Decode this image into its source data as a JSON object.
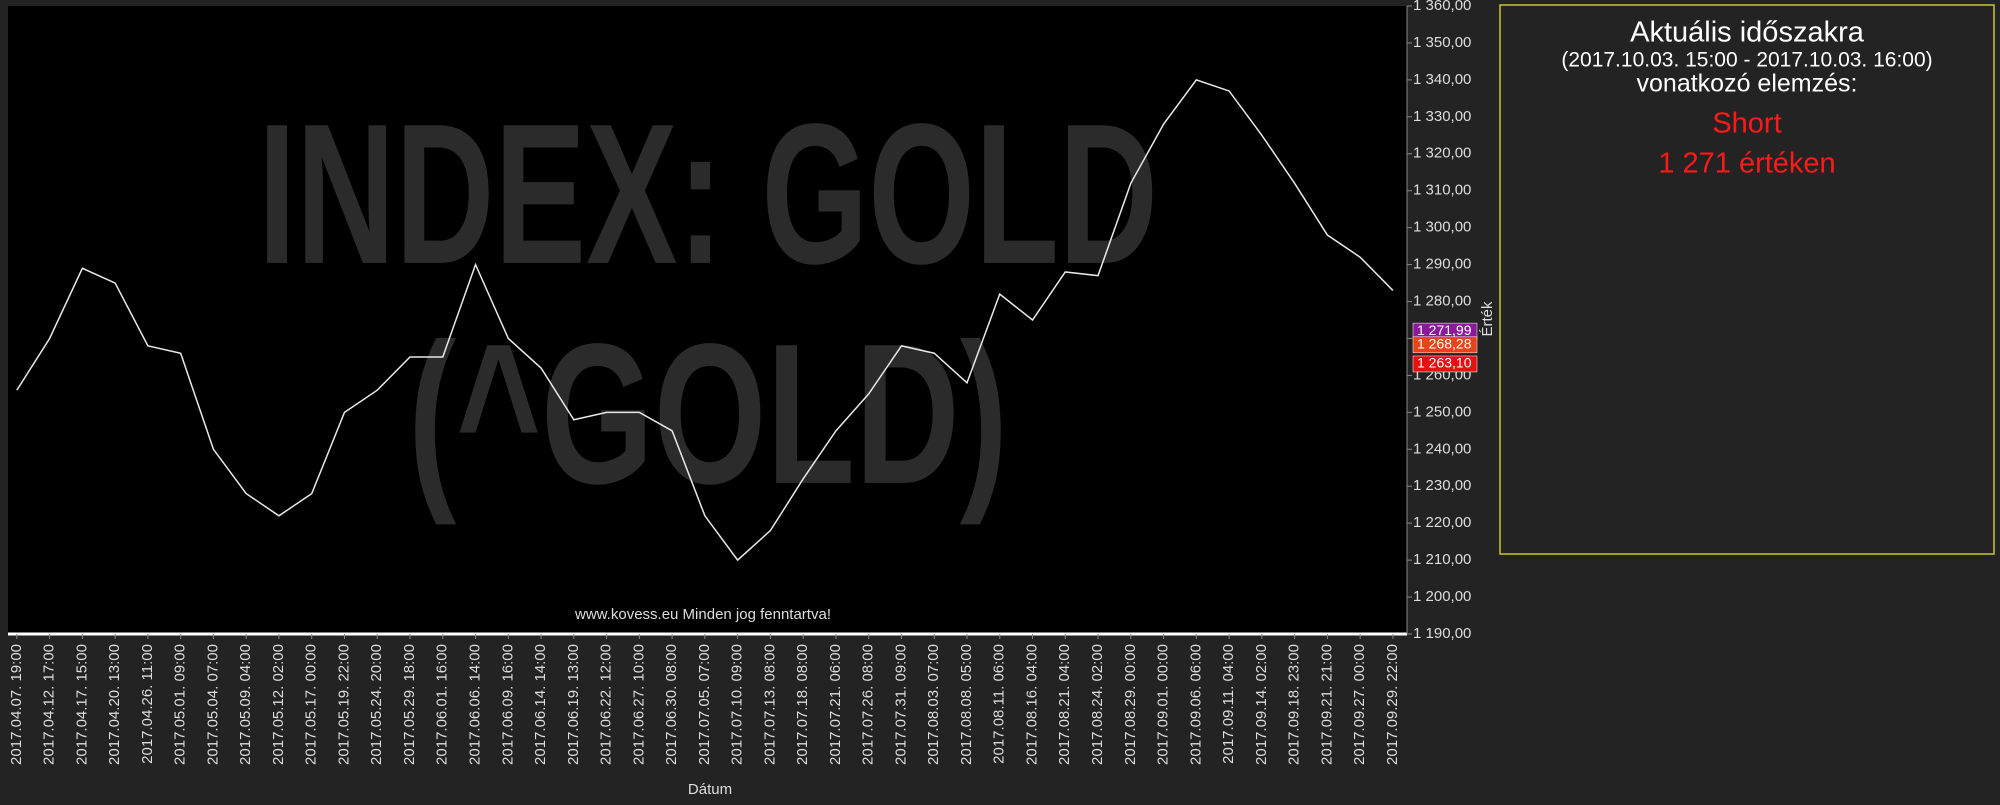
{
  "chart_data": {
    "type": "line",
    "watermark": [
      "INDEX: GOLD",
      "(^GOLD)"
    ],
    "footer": "www.kovess.eu Minden jog fenntartva!",
    "x_label": "Dátum",
    "y_label": "Érték",
    "categories": [
      "2017.04.07. 19:00",
      "2017.04.12. 17:00",
      "2017.04.17. 15:00",
      "2017.04.20. 13:00",
      "2017.04.26. 11:00",
      "2017.05.01. 09:00",
      "2017.05.04. 07:00",
      "2017.05.09. 04:00",
      "2017.05.12. 02:00",
      "2017.05.17. 00:00",
      "2017.05.19. 22:00",
      "2017.05.24. 20:00",
      "2017.05.29. 18:00",
      "2017.06.01. 16:00",
      "2017.06.06. 14:00",
      "2017.06.09. 16:00",
      "2017.06.14. 14:00",
      "2017.06.19. 13:00",
      "2017.06.22. 12:00",
      "2017.06.27. 10:00",
      "2017.06.30. 08:00",
      "2017.07.05. 07:00",
      "2017.07.10. 09:00",
      "2017.07.13. 08:00",
      "2017.07.18. 08:00",
      "2017.07.21. 06:00",
      "2017.07.26. 08:00",
      "2017.07.31. 09:00",
      "2017.08.03. 07:00",
      "2017.08.08. 05:00",
      "2017.08.11. 06:00",
      "2017.08.16. 04:00",
      "2017.08.21. 04:00",
      "2017.08.24. 02:00",
      "2017.08.29. 00:00",
      "2017.09.01. 00:00",
      "2017.09.06. 06:00",
      "2017.09.11. 04:00",
      "2017.09.14. 02:00",
      "2017.09.18. 23:00",
      "2017.09.21. 21:00",
      "2017.09.27. 00:00",
      "2017.09.29. 22:00"
    ],
    "series": [
      {
        "name": "GOLD",
        "color": "#e8e8e8",
        "values": [
          1256,
          1270,
          1289,
          1285,
          1268,
          1266,
          1240,
          1228,
          1222,
          1228,
          1250,
          1256,
          1265,
          1265,
          1290,
          1270,
          1262,
          1248,
          1250,
          1250,
          1245,
          1222,
          1210,
          1218,
          1232,
          1245,
          1255,
          1268,
          1266,
          1258,
          1282,
          1275,
          1288,
          1287,
          1312,
          1328,
          1340,
          1337,
          1325,
          1312,
          1298,
          1292,
          1283
        ]
      }
    ],
    "ylim": [
      1190,
      1360
    ],
    "yticks": [
      {
        "value": 1190,
        "label": "1 190,00"
      },
      {
        "value": 1200,
        "label": "1 200,00"
      },
      {
        "value": 1210,
        "label": "1 210,00"
      },
      {
        "value": 1220,
        "label": "1 220,00"
      },
      {
        "value": 1230,
        "label": "1 230,00"
      },
      {
        "value": 1240,
        "label": "1 240,00"
      },
      {
        "value": 1250,
        "label": "1 250,00"
      },
      {
        "value": 1260,
        "label": "1 260,00"
      },
      {
        "value": 1270,
        "label": "1 270,00"
      },
      {
        "value": 1280,
        "label": "1 280,00"
      },
      {
        "value": 1290,
        "label": "1 290,00"
      },
      {
        "value": 1300,
        "label": "1 300,00"
      },
      {
        "value": 1310,
        "label": "1 310,00"
      },
      {
        "value": 1320,
        "label": "1 320,00"
      },
      {
        "value": 1330,
        "label": "1 330,00"
      },
      {
        "value": 1340,
        "label": "1 340,00"
      },
      {
        "value": 1350,
        "label": "1 350,00"
      },
      {
        "value": 1360,
        "label": "1 360,00"
      }
    ],
    "markers": [
      {
        "value": 1271.99,
        "label": "1 271,99",
        "color": "#8b1a9b"
      },
      {
        "value": 1268.28,
        "label": "1 268,28",
        "color": "#e8431a"
      },
      {
        "value": 1263.1,
        "label": "1 263,10",
        "color": "#e51010"
      }
    ]
  },
  "panel": {
    "title": "Aktuális időszakra",
    "period": "(2017.10.03. 15:00 - 2017.10.03. 16:00)",
    "subtitle": "vonatkozó elemzés:",
    "signal": "Short",
    "price": "1 271  értéken"
  }
}
